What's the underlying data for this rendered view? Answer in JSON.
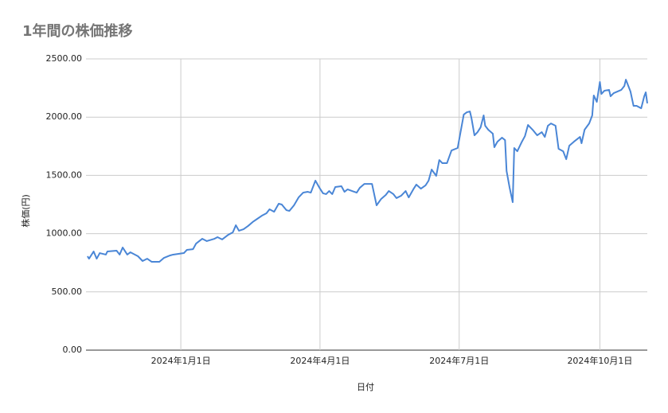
{
  "chart_data": {
    "type": "line",
    "title": "1年間の株価推移",
    "x_label": "日付",
    "y_label": "株価(円)",
    "color": "#4a86d6",
    "grid": true,
    "x": [
      "2023-11-01",
      "2023-11-02",
      "2023-11-05",
      "2023-11-07",
      "2023-11-09",
      "2023-11-13",
      "2023-11-14",
      "2023-11-20",
      "2023-11-22",
      "2023-11-24",
      "2023-11-27",
      "2023-11-29",
      "2023-12-04",
      "2023-12-07",
      "2023-12-10",
      "2023-12-13",
      "2023-12-18",
      "2023-12-21",
      "2023-12-25",
      "2023-12-27",
      "2024-01-03",
      "2024-01-05",
      "2024-01-09",
      "2024-01-11",
      "2024-01-15",
      "2024-01-18",
      "2024-01-23",
      "2024-01-25",
      "2024-01-28",
      "2024-02-01",
      "2024-02-04",
      "2024-02-06",
      "2024-02-08",
      "2024-02-11",
      "2024-02-14",
      "2024-02-17",
      "2024-02-20",
      "2024-02-23",
      "2024-02-26",
      "2024-02-28",
      "2024-03-02",
      "2024-03-05",
      "2024-03-07",
      "2024-03-10",
      "2024-03-12",
      "2024-03-15",
      "2024-03-18",
      "2024-03-21",
      "2024-03-24",
      "2024-03-26",
      "2024-03-29",
      "2024-04-01",
      "2024-04-03",
      "2024-04-05",
      "2024-04-07",
      "2024-04-09",
      "2024-04-11",
      "2024-04-15",
      "2024-04-17",
      "2024-04-19",
      "2024-04-22",
      "2024-04-25",
      "2024-04-27",
      "2024-04-30",
      "2024-05-05",
      "2024-05-08",
      "2024-05-11",
      "2024-05-14",
      "2024-05-16",
      "2024-05-19",
      "2024-05-21",
      "2024-05-24",
      "2024-05-27",
      "2024-05-29",
      "2024-06-01",
      "2024-06-03",
      "2024-06-06",
      "2024-06-09",
      "2024-06-11",
      "2024-06-13",
      "2024-06-16",
      "2024-06-18",
      "2024-06-20",
      "2024-06-23",
      "2024-06-26",
      "2024-06-30",
      "2024-07-04",
      "2024-07-06",
      "2024-07-08",
      "2024-07-09",
      "2024-07-11",
      "2024-07-13",
      "2024-07-15",
      "2024-07-17",
      "2024-07-18",
      "2024-07-20",
      "2024-07-23",
      "2024-07-24",
      "2024-07-26",
      "2024-07-29",
      "2024-07-31",
      "2024-08-01",
      "2024-08-03",
      "2024-08-05",
      "2024-08-06",
      "2024-08-08",
      "2024-08-11",
      "2024-08-13",
      "2024-08-15",
      "2024-08-18",
      "2024-08-21",
      "2024-08-24",
      "2024-08-26",
      "2024-08-28",
      "2024-08-30",
      "2024-09-02",
      "2024-09-04",
      "2024-09-07",
      "2024-09-09",
      "2024-09-11",
      "2024-09-14",
      "2024-09-18",
      "2024-09-19",
      "2024-09-21",
      "2024-09-24",
      "2024-09-26",
      "2024-09-27",
      "2024-09-29",
      "2024-10-01",
      "2024-10-02",
      "2024-10-04",
      "2024-10-07",
      "2024-10-08",
      "2024-10-10",
      "2024-10-15",
      "2024-10-17",
      "2024-10-18",
      "2024-10-21",
      "2024-10-23",
      "2024-10-25",
      "2024-10-28",
      "2024-10-30",
      "2024-10-31",
      "2024-11-01"
    ],
    "values": [
      806,
      785,
      847,
      785,
      833,
      820,
      847,
      854,
      820,
      881,
      820,
      840,
      806,
      765,
      785,
      758,
      758,
      792,
      813,
      820,
      833,
      861,
      867,
      915,
      956,
      936,
      956,
      970,
      950,
      990,
      1011,
      1072,
      1025,
      1038,
      1066,
      1100,
      1127,
      1154,
      1175,
      1209,
      1188,
      1257,
      1250,
      1202,
      1195,
      1243,
      1311,
      1352,
      1359,
      1352,
      1455,
      1386,
      1346,
      1339,
      1366,
      1339,
      1400,
      1407,
      1359,
      1380,
      1366,
      1352,
      1393,
      1427,
      1427,
      1243,
      1298,
      1332,
      1366,
      1339,
      1305,
      1325,
      1366,
      1311,
      1380,
      1421,
      1386,
      1414,
      1455,
      1550,
      1496,
      1632,
      1605,
      1605,
      1714,
      1735,
      2022,
      2042,
      2049,
      1994,
      1844,
      1871,
      1912,
      2015,
      1926,
      1892,
      1858,
      1742,
      1789,
      1824,
      1803,
      1537,
      1393,
      1270,
      1735,
      1707,
      1789,
      1837,
      1933,
      1892,
      1844,
      1871,
      1830,
      1926,
      1946,
      1926,
      1728,
      1707,
      1639,
      1755,
      1789,
      1830,
      1776,
      1892,
      1946,
      2015,
      2186,
      2131,
      2302,
      2199,
      2227,
      2234,
      2179,
      2206,
      2234,
      2268,
      2322,
      2220,
      2097,
      2097,
      2076,
      2179,
      2213,
      2118
    ],
    "xlim": [
      "2023-10-31",
      "2024-11-01"
    ],
    "xticks": [
      {
        "value": "2024-01-01",
        "label": "2024年1月1日"
      },
      {
        "value": "2024-04-01",
        "label": "2024年4月1日"
      },
      {
        "value": "2024-07-01",
        "label": "2024年7月1日"
      },
      {
        "value": "2024-10-01",
        "label": "2024年10月1日"
      }
    ],
    "ylim": [
      0,
      2500
    ],
    "yticks": [
      {
        "value": 0,
        "label": "0.00"
      },
      {
        "value": 500,
        "label": "500.00"
      },
      {
        "value": 1000,
        "label": "1000.00"
      },
      {
        "value": 1500,
        "label": "1500.00"
      },
      {
        "value": 2000,
        "label": "2000.00"
      },
      {
        "value": 2500,
        "label": "2500.00"
      }
    ]
  }
}
